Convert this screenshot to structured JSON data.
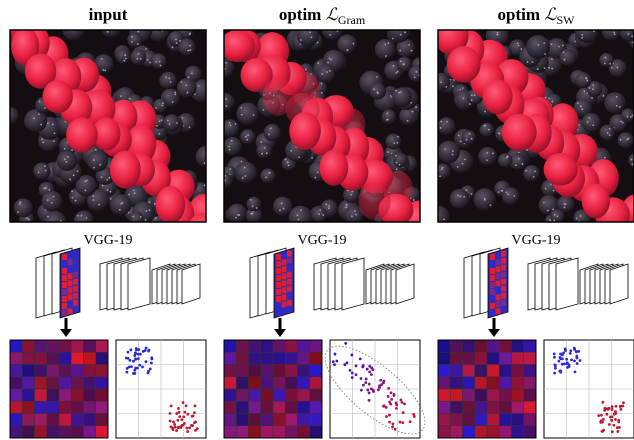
{
  "columns": [
    {
      "title": "input",
      "network": "VGG-19"
    },
    {
      "title": "optim ",
      "symbol": "ℒ",
      "subscript": "Gram",
      "network": "VGG-19"
    },
    {
      "title": "optim ",
      "symbol": "ℒ",
      "subscript": "SW",
      "network": "VGG-19"
    }
  ]
}
